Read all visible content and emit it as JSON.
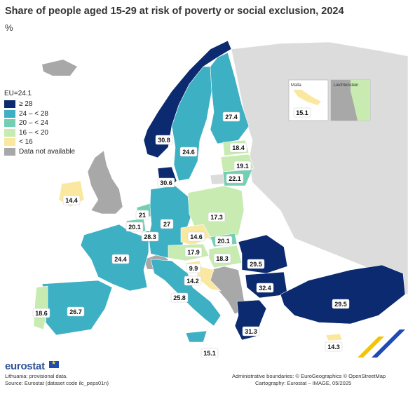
{
  "title": "Share of people aged 15-29 at risk of poverty or social exclusion, 2024",
  "unit": "%",
  "legend": {
    "title": "EU=24.1",
    "items": [
      {
        "label": "≥ 28",
        "color": "#0b2a6f"
      },
      {
        "label": "24 – < 28",
        "color": "#3db0c4"
      },
      {
        "label": "20 – < 24",
        "color": "#73cfb4"
      },
      {
        "label": "16 – < 20",
        "color": "#c7ebb0"
      },
      {
        "label": "< 16",
        "color": "#fae8a1"
      },
      {
        "label": "Data not available",
        "color": "#a8a8a8"
      }
    ]
  },
  "inset": {
    "malta": "Malta",
    "malta_value": "15.1",
    "liechtenstein": "Liechtenstein"
  },
  "regions": {
    "norway": "30.8",
    "sweden": "24.6",
    "finland": "27.4",
    "estonia": "18.4",
    "latvia": "19.1",
    "lithuania": "22.1",
    "denmark": "30.6",
    "ireland": "14.4",
    "netherlands": "21",
    "belgium": "20.1",
    "luxembourg": "28.3",
    "germany": "27",
    "poland": "17.3",
    "czechia": "14.6",
    "slovakia": "20.1",
    "austria": "17.9",
    "hungary": "18.3",
    "slovenia": "9.9",
    "croatia": "14.2",
    "romania": "29.5",
    "bulgaria": "32.4",
    "france": "24.4",
    "spain": "26.7",
    "portugal": "18.6",
    "italy": "25.8",
    "malta_south": "15.1",
    "greece": "31.3",
    "cyprus": "14.3",
    "turkey": "29.5"
  },
  "footer": {
    "brand": "eurostat",
    "note": "Lithuania: provisional data.",
    "source": "Source: Eurostat (dataset code ilc_peps01n)",
    "admin": "Administrative boundaries: © EuroGeographics © OpenStreetMap",
    "carto": "Cartography: Eurostat – IMAGE, 05/2025"
  },
  "colors": {
    "sea": "#ffffff",
    "non_eu": "#dcdcdc"
  }
}
